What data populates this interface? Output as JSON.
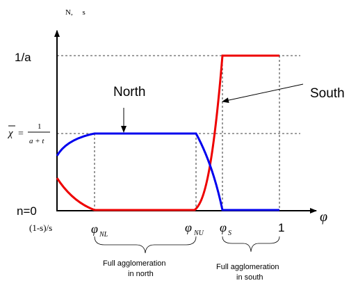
{
  "axes": {
    "y_top_label": "N,     s",
    "y_ticks": {
      "one_over_a": "1/a",
      "chi_symbol": "χ",
      "chi_eq": "=",
      "chi_num": "1",
      "chi_den": "a + t",
      "n_zero": "n=0"
    },
    "x_ticks": {
      "start": "(1-s)/s",
      "phi_nl": "φ",
      "phi_nl_sub": "NL",
      "phi_nu": "φ",
      "phi_nu_sub": "NU",
      "phi_s": "φ",
      "phi_s_sub": "S",
      "one": "1"
    },
    "x_axis_symbol": "φ"
  },
  "curves": {
    "north": {
      "label": "North",
      "color": "#0000ee"
    },
    "south": {
      "label": "South",
      "color": "#ee0000"
    }
  },
  "regions": {
    "north_full": {
      "line1": "Full agglomeration",
      "line2": "in north"
    },
    "south_full": {
      "line1": "Full agglomeration",
      "line2": "in south"
    }
  }
}
